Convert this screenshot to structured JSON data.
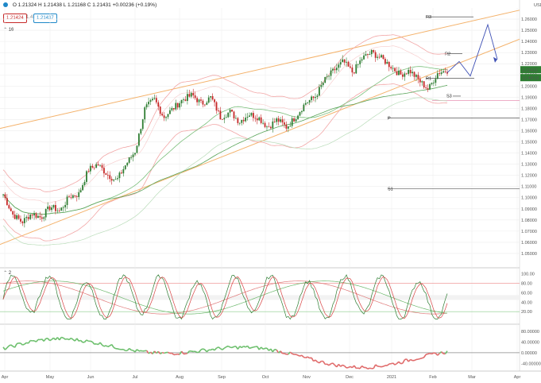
{
  "header": {
    "ohlc": "O 1.21324  H 1.21438  L 1.21168  C 1.21431  +0.00236 (+0.19%)",
    "bid": "1.21424",
    "mid_label": "1.4",
    "ask": "1.21437",
    "ma_label": "16",
    "stoch_label": "2",
    "currency": "USD"
  },
  "colors": {
    "up": "#2e7d32",
    "down": "#c62828",
    "channel": "#f4b26b",
    "bands": "#f2a7a7",
    "ma": "#7cbf7c",
    "projection": "#3f51b5"
  },
  "last_price_label": "1.21431",
  "timer_label": "12:48:16",
  "chart_data": [
    {
      "type": "candlestick",
      "ylim": [
        1.04,
        1.27
      ],
      "x_ticks": [
        "Apr",
        "May",
        "Jun",
        "Jul",
        "Aug",
        "Sep",
        "Oct",
        "Nov",
        "Dec",
        "2021",
        "Feb",
        "Mar",
        "Apr"
      ],
      "y_ticks": [
        "1.26000",
        "1.25000",
        "1.24000",
        "1.23000",
        "1.22000",
        "1.21000",
        "1.20000",
        "1.19000",
        "1.18000",
        "1.17000",
        "1.16000",
        "1.15000",
        "1.14000",
        "1.13000",
        "1.12000",
        "1.11000",
        "1.10000",
        "1.09000",
        "1.08000",
        "1.07000",
        "1.06000",
        "1.05000"
      ],
      "y_tick_values": [
        1.26,
        1.25,
        1.24,
        1.23,
        1.22,
        1.21,
        1.2,
        1.19,
        1.18,
        1.17,
        1.16,
        1.15,
        1.14,
        1.13,
        1.12,
        1.11,
        1.1,
        1.09,
        1.08,
        1.07,
        1.06,
        1.05
      ],
      "pivot_levels": [
        {
          "label": "R3",
          "value": 1.262
        },
        {
          "label": "R2",
          "value": 1.229
        },
        {
          "label": "R1",
          "value": 1.207
        },
        {
          "label": "P",
          "value": 1.1715
        },
        {
          "label": "S1",
          "value": 1.108
        }
      ],
      "close_path_anchors": [
        1.103,
        1.085,
        1.078,
        1.086,
        1.082,
        1.092,
        1.088,
        1.101,
        1.103,
        1.125,
        1.13,
        1.121,
        1.115,
        1.13,
        1.142,
        1.18,
        1.188,
        1.172,
        1.18,
        1.188,
        1.192,
        1.184,
        1.19,
        1.172,
        1.177,
        1.168,
        1.175,
        1.172,
        1.163,
        1.17,
        1.163,
        1.173,
        1.185,
        1.19,
        1.205,
        1.214,
        1.222,
        1.212,
        1.225,
        1.23,
        1.225,
        1.218,
        1.21,
        1.214,
        1.205,
        1.197,
        1.212,
        1.214
      ]
    },
    {
      "type": "line",
      "name": "stochastic",
      "y_ticks": [
        "100.00",
        "80.00",
        "60.00",
        "40.00",
        "20.00"
      ],
      "y_tick_values": [
        100,
        80,
        60,
        40,
        20
      ],
      "ylim": [
        0,
        108
      ]
    },
    {
      "type": "line",
      "name": "momentum",
      "y_ticks": [
        "80.00000",
        "40.00000",
        "0.00000",
        "-40.00000"
      ],
      "y_tick_values": [
        80,
        40,
        0,
        -40
      ],
      "ylim": [
        -60,
        95
      ]
    }
  ]
}
